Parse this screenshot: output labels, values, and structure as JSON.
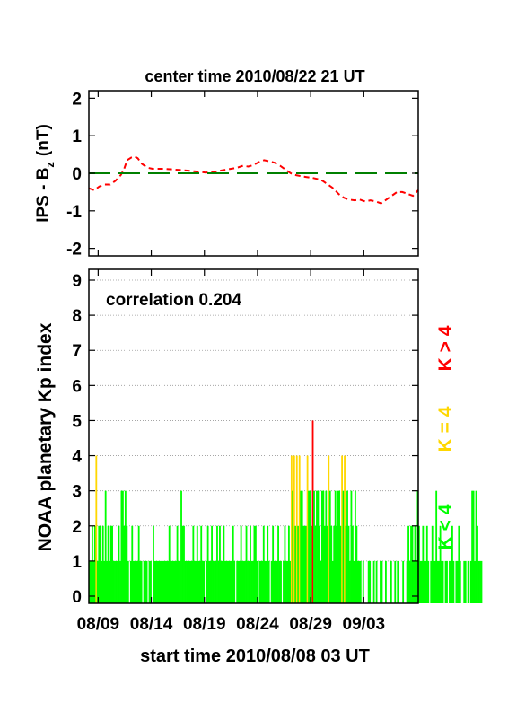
{
  "chart_data": [
    {
      "type": "line",
      "title": "center time 2010/08/22 21 UT",
      "ylabel_main": "IPS - B",
      "ylabel_sub": "z",
      "ylabel_unit": "(nT)",
      "ylim": [
        -2.2,
        2.2
      ],
      "yticks": [
        "2",
        "1",
        "0",
        "-1",
        "-2"
      ],
      "ytick_values": [
        2,
        1,
        0,
        -1,
        -2
      ],
      "xlim": [
        0,
        31
      ],
      "series": [
        {
          "color": "#ff0000",
          "style": "dashed",
          "x": [
            0,
            0.5,
            1,
            1.5,
            2,
            2.5,
            3,
            3.3,
            3.6,
            4,
            4.3,
            4.6,
            5,
            5.5,
            6,
            6.5,
            7,
            8,
            9,
            10,
            11,
            12,
            13,
            14,
            14.5,
            15,
            15.5,
            16,
            16.5,
            17,
            17.5,
            18,
            18.5,
            19,
            19.5,
            20,
            20.5,
            21,
            21.5,
            22,
            22.5,
            23,
            23.5,
            24,
            24.5,
            25,
            25.5,
            26,
            26.5,
            27,
            27.5,
            28,
            28.5,
            29,
            29.5,
            30,
            30.5,
            31
          ],
          "y": [
            -0.4,
            -0.45,
            -0.35,
            -0.3,
            -0.3,
            -0.2,
            -0.05,
            0.1,
            0.35,
            0.42,
            0.45,
            0.4,
            0.25,
            0.15,
            0.12,
            0.12,
            0.12,
            0.1,
            0.08,
            0.05,
            0.02,
            0.05,
            0.1,
            0.15,
            0.2,
            0.18,
            0.22,
            0.3,
            0.35,
            0.32,
            0.28,
            0.2,
            0.1,
            0.0,
            -0.05,
            -0.08,
            -0.1,
            -0.12,
            -0.15,
            -0.2,
            -0.3,
            -0.4,
            -0.55,
            -0.65,
            -0.7,
            -0.72,
            -0.7,
            -0.75,
            -0.72,
            -0.75,
            -0.8,
            -0.7,
            -0.6,
            -0.5,
            -0.5,
            -0.55,
            -0.6,
            -0.45
          ]
        },
        {
          "color": "#008000",
          "style": "long-dash",
          "x": [
            0,
            31
          ],
          "y": [
            0,
            0
          ]
        }
      ]
    },
    {
      "type": "bar",
      "annotation": "correlation 0.204",
      "ylabel": "NOAA planetary Kp index",
      "ylim": [
        0,
        9
      ],
      "yticks": [
        "9",
        "8",
        "7",
        "6",
        "5",
        "4",
        "3",
        "2",
        "1",
        "0"
      ],
      "ytick_values": [
        9,
        8,
        7,
        6,
        5,
        4,
        3,
        2,
        1,
        0
      ],
      "grid": true,
      "xlim": [
        0,
        31
      ],
      "xticks": [
        "08/09",
        "08/14",
        "08/19",
        "08/24",
        "08/29",
        "09/03"
      ],
      "xtick_values": [
        0.875,
        5.875,
        10.875,
        15.875,
        20.875,
        25.875
      ],
      "xlabel": "start time 2010/08/08 03 UT",
      "legend": [
        {
          "label": "K < 4",
          "color": "#00ff00"
        },
        {
          "label": "K = 4",
          "color": "#ffd700"
        },
        {
          "label": "K > 4",
          "color": "#ff0000"
        }
      ],
      "bar_step_days": 0.125,
      "kp_values": [
        1,
        1,
        2,
        1,
        2,
        4,
        1,
        2,
        2,
        1,
        2,
        1,
        3,
        1,
        2,
        1,
        2,
        2,
        1,
        1,
        1,
        1,
        2,
        1,
        3,
        3,
        2,
        3,
        2,
        1,
        0,
        1,
        2,
        1,
        1,
        1,
        1,
        2,
        1,
        1,
        0,
        1,
        1,
        1,
        0,
        1,
        1,
        0,
        2,
        1,
        1,
        1,
        1,
        1,
        1,
        1,
        1,
        1,
        1,
        1,
        2,
        1,
        1,
        1,
        1,
        1,
        2,
        1,
        1,
        3,
        2,
        2,
        1,
        1,
        1,
        1,
        1,
        1,
        2,
        1,
        1,
        2,
        1,
        1,
        2,
        1,
        1,
        0,
        1,
        2,
        1,
        1,
        2,
        1,
        1,
        1,
        2,
        1,
        2,
        1,
        1,
        2,
        1,
        1,
        1,
        1,
        1,
        1,
        2,
        1,
        0,
        1,
        1,
        1,
        2,
        1,
        1,
        1,
        2,
        1,
        1,
        2,
        1,
        1,
        2,
        2,
        1,
        0,
        1,
        1,
        1,
        2,
        1,
        1,
        2,
        1,
        0,
        1,
        2,
        1,
        1,
        1,
        2,
        1,
        1,
        0,
        1,
        2,
        1,
        1,
        2,
        1,
        4,
        3,
        4,
        2,
        4,
        2,
        4,
        3,
        3,
        2,
        2,
        2,
        4,
        3,
        3,
        2,
        5,
        3,
        2,
        3,
        3,
        2,
        1,
        3,
        3,
        2,
        3,
        2,
        4,
        3,
        2,
        1,
        2,
        3,
        2,
        3,
        3,
        2,
        4,
        3,
        4,
        2,
        3,
        2,
        1,
        3,
        2,
        1,
        3,
        2,
        1,
        1,
        1,
        0,
        1,
        0,
        0,
        0,
        1,
        1,
        0,
        0,
        1,
        0,
        1,
        0,
        0,
        1,
        1,
        0,
        0,
        1,
        0,
        0,
        0,
        1,
        0,
        0,
        1,
        0,
        1,
        0,
        0,
        0,
        1,
        0,
        0,
        1,
        2,
        1,
        2,
        2,
        1,
        2,
        1,
        3,
        2,
        1,
        1,
        2,
        1,
        1,
        2,
        1,
        0,
        1,
        2,
        1,
        1,
        3,
        1,
        1,
        2,
        1,
        1,
        0,
        1,
        1,
        0,
        1,
        1,
        2,
        1,
        0,
        1,
        1,
        2,
        1,
        0,
        0,
        1,
        1,
        0,
        1,
        0,
        1,
        3,
        3,
        1,
        3,
        2,
        1,
        1,
        1,
        0
      ]
    }
  ]
}
